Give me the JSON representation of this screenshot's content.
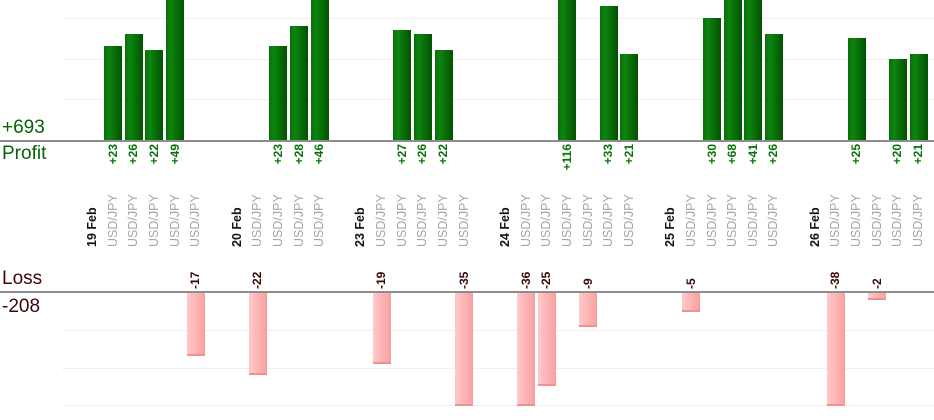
{
  "summary": {
    "profit_total_label": "+693",
    "profit_caption": "Profit",
    "loss_caption": "Loss",
    "loss_total_label": "-208"
  },
  "colors": {
    "profit_bar_light": "#0d850d",
    "profit_bar_dark": "#025102",
    "profit_text": "#077307",
    "loss_bar_light": "#ffc9c9",
    "loss_bar_dark": "#f9a2a2",
    "loss_text": "#3b0808",
    "date_text": "#141414",
    "instrument_text": "#a6a6a6",
    "axis_line": "#8d8d8d",
    "grid_line": "#efefef"
  },
  "chart_data": {
    "type": "bar",
    "title": "",
    "legend": "none",
    "grid": true,
    "profit_total": 693,
    "loss_total": -208,
    "profit_axis": {
      "gridline_interval": 10,
      "baseline": 0,
      "visible_max": 34.5,
      "tall_bars_clipped": true
    },
    "loss_axis": {
      "gridline_interval": 10,
      "baseline": 0,
      "visible_min": -30.3,
      "deep_bars_clipped": true
    },
    "groups": [
      {
        "date": "19 Feb",
        "trades": [
          {
            "pair": "USD/JPY",
            "value": 23
          },
          {
            "pair": "USD/JPY",
            "value": 26
          },
          {
            "pair": "USD/JPY",
            "value": 22
          },
          {
            "pair": "USD/JPY",
            "value": 49
          },
          {
            "pair": "USD/JPY",
            "value": -17
          }
        ]
      },
      {
        "date": "20 Feb",
        "trades": [
          {
            "pair": "USD/JPY",
            "value": -22
          },
          {
            "pair": "USD/JPY",
            "value": 23
          },
          {
            "pair": "USD/JPY",
            "value": 28
          },
          {
            "pair": "USD/JPY",
            "value": 46
          }
        ]
      },
      {
        "date": "23 Feb",
        "trades": [
          {
            "pair": "USD/JPY",
            "value": -19
          },
          {
            "pair": "USD/JPY",
            "value": 27
          },
          {
            "pair": "USD/JPY",
            "value": 26
          },
          {
            "pair": "USD/JPY",
            "value": 22
          },
          {
            "pair": "USD/JPY",
            "value": -35
          }
        ]
      },
      {
        "date": "24 Feb",
        "trades": [
          {
            "pair": "USD/JPY",
            "value": -36
          },
          {
            "pair": "USD/JPY",
            "value": -25
          },
          {
            "pair": "USD/JPY",
            "value": 116
          },
          {
            "pair": "USD/JPY",
            "value": -9
          },
          {
            "pair": "USD/JPY",
            "value": 33
          },
          {
            "pair": "USD/JPY",
            "value": 21
          }
        ]
      },
      {
        "date": "25 Feb",
        "trades": [
          {
            "pair": "USD/JPY",
            "value": -5
          },
          {
            "pair": "USD/JPY",
            "value": 30
          },
          {
            "pair": "USD/JPY",
            "value": 68
          },
          {
            "pair": "USD/JPY",
            "value": 41
          },
          {
            "pair": "USD/JPY",
            "value": 26
          }
        ]
      },
      {
        "date": "26 Feb",
        "trades": [
          {
            "pair": "USD/JPY",
            "value": -38
          },
          {
            "pair": "USD/JPY",
            "value": 25
          },
          {
            "pair": "USD/JPY",
            "value": -2
          },
          {
            "pair": "USD/JPY",
            "value": 20
          },
          {
            "pair": "USD/JPY",
            "value": 21
          }
        ]
      }
    ]
  }
}
